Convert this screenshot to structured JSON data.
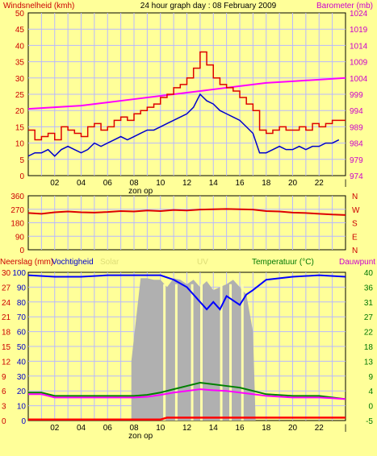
{
  "title": "24 hour graph day : 08 February 2009",
  "colors": {
    "background": "#ffff99",
    "plot_bg": "#ffff99",
    "grid": "#b8b8ff",
    "wind": "#dd0000",
    "gust": "#0000cc",
    "baro": "#ff00ff",
    "dir": "#dd0000",
    "hum": "#0000ff",
    "solar": "#b0b0b0",
    "uv": "#ffffaa",
    "temp": "#008000",
    "dew": "#ff00ff",
    "rain": "#ff0000",
    "text_red": "#cc0000",
    "text_mag": "#cc00cc",
    "text_green": "#007700",
    "text_dark": "#000000"
  },
  "chart_data": [
    {
      "type": "line",
      "name": "wind-baro",
      "left_label": "Windsnelheid (kmh)",
      "right_label": "Barometer (mb)",
      "left_ticks": [
        "50",
        "45",
        "40",
        "35",
        "30",
        "25",
        "20",
        "15",
        "10",
        "5",
        "0"
      ],
      "right_ticks": [
        "1024",
        "1019",
        "1014",
        "1009",
        "1004",
        "999",
        "994",
        "989",
        "984",
        "979",
        "974"
      ],
      "ylim_left": [
        0,
        50
      ],
      "ylim_right": [
        974,
        1024
      ],
      "x_ticks": [
        "02",
        "04",
        "06",
        "08",
        "10",
        "12",
        "14",
        "16",
        "18",
        "20",
        "22"
      ],
      "x_end_tick": "|",
      "xlim": [
        0,
        24
      ],
      "annotation": "zon op",
      "annotation_x": 8.5,
      "series": [
        {
          "key": "wind",
          "x": [
            0,
            0.5,
            1,
            1.5,
            2,
            2.5,
            3,
            3.5,
            4,
            4.5,
            5,
            5.5,
            6,
            6.5,
            7,
            7.5,
            8,
            8.5,
            9,
            9.5,
            10,
            10.5,
            11,
            11.5,
            12,
            12.5,
            13,
            13.5,
            14,
            14.5,
            15,
            15.5,
            16,
            16.5,
            17,
            17.5,
            18,
            18.5,
            19,
            19.5,
            20,
            20.5,
            21,
            21.5,
            22,
            22.5,
            23,
            23.5
          ],
          "y": [
            14,
            11,
            12,
            13,
            11,
            15,
            14,
            13,
            12,
            15,
            16,
            14,
            15,
            17,
            18,
            17,
            19,
            20,
            21,
            22,
            24,
            25,
            27,
            28,
            30,
            33,
            38,
            34,
            30,
            28,
            27,
            26,
            24,
            22,
            20,
            14,
            13,
            14,
            15,
            14,
            14,
            15,
            14,
            16,
            15,
            16,
            17,
            17
          ]
        },
        {
          "key": "gust",
          "x": [
            0,
            0.5,
            1,
            1.5,
            2,
            2.5,
            3,
            3.5,
            4,
            4.5,
            5,
            5.5,
            6,
            6.5,
            7,
            7.5,
            8,
            8.5,
            9,
            9.5,
            10,
            10.5,
            11,
            11.5,
            12,
            12.5,
            13,
            13.5,
            14,
            14.5,
            15,
            15.5,
            16,
            16.5,
            17,
            17.5,
            18,
            18.5,
            19,
            19.5,
            20,
            20.5,
            21,
            21.5,
            22,
            22.5,
            23,
            23.5
          ],
          "y": [
            6,
            7,
            7,
            8,
            6,
            8,
            9,
            8,
            7,
            8,
            10,
            9,
            10,
            11,
            12,
            11,
            12,
            13,
            14,
            14,
            15,
            16,
            17,
            18,
            19,
            21,
            25,
            23,
            22,
            20,
            19,
            18,
            17,
            15,
            13,
            7,
            7,
            8,
            9,
            8,
            8,
            9,
            8,
            9,
            9,
            10,
            10,
            11
          ]
        },
        {
          "key": "baro",
          "x": [
            0,
            2,
            4,
            6,
            8,
            10,
            12,
            14,
            16,
            18,
            20,
            22,
            24
          ],
          "y": [
            994.5,
            995,
            995.5,
            996.5,
            997.5,
            998.5,
            999.5,
            1000.5,
            1001.5,
            1002.5,
            1003,
            1003.5,
            1004
          ]
        }
      ]
    },
    {
      "type": "line",
      "name": "wind-direction",
      "left_ticks": [
        "360",
        "270",
        "180",
        "90",
        "0"
      ],
      "right_ticks": [
        "N",
        "W",
        "S",
        "E",
        "N"
      ],
      "ylim": [
        0,
        360
      ],
      "x": [
        0,
        1,
        2,
        3,
        4,
        5,
        6,
        7,
        8,
        9,
        10,
        11,
        12,
        13,
        14,
        15,
        16,
        17,
        18,
        19,
        20,
        21,
        22,
        23,
        24
      ],
      "series": [
        {
          "key": "dir",
          "y": [
            245,
            240,
            250,
            255,
            250,
            248,
            252,
            258,
            255,
            262,
            258,
            265,
            262,
            268,
            270,
            272,
            270,
            268,
            258,
            255,
            248,
            245,
            240,
            235,
            232
          ]
        }
      ]
    },
    {
      "type": "area",
      "name": "rain-humidity-temp",
      "left_labels": [
        "Neerslag (mm)",
        "Vochtigheid",
        "Solar",
        "UV"
      ],
      "right_labels": [
        "Temperatuur (°C)",
        "Dauwpunt"
      ],
      "left_ticks_rain": [
        "30",
        "27",
        "24",
        "21",
        "18",
        "15",
        "12",
        "9",
        "6",
        "3",
        "0"
      ],
      "left_ticks_hum": [
        "100",
        "90",
        "80",
        "70",
        "60",
        "50",
        "40",
        "30",
        "20",
        "10",
        "0"
      ],
      "right_ticks": [
        "40",
        "36",
        "31",
        "27",
        "22",
        "18",
        "13",
        "9",
        "4",
        "0",
        "-5"
      ],
      "ylim_rain": [
        0,
        30
      ],
      "ylim_hum": [
        0,
        100
      ],
      "ylim_temp": [
        -5,
        40
      ],
      "x_ticks": [
        "02",
        "04",
        "06",
        "08",
        "10",
        "12",
        "14",
        "16",
        "18",
        "20",
        "22"
      ],
      "x_end_tick": "|",
      "annotation": "zon op",
      "annotation_x": 8.5,
      "series": [
        {
          "key": "hum",
          "x": [
            0,
            2,
            4,
            6,
            8,
            10,
            11,
            12,
            13,
            13.5,
            14,
            14.5,
            15,
            16,
            16.5,
            17,
            18,
            20,
            22,
            24
          ],
          "y": [
            98,
            97,
            97,
            98,
            98,
            98,
            95,
            90,
            80,
            75,
            80,
            75,
            84,
            78,
            85,
            88,
            95,
            97,
            98,
            97
          ]
        },
        {
          "key": "solar",
          "x": [
            7.8,
            8.5,
            9,
            9.5,
            10,
            10.5,
            11,
            11.5,
            12,
            12.5,
            13,
            13.5,
            14,
            14.5,
            15,
            15.5,
            16,
            16.5,
            17,
            17.2
          ],
          "y": [
            40,
            96,
            96,
            95,
            95,
            90,
            96,
            95,
            92,
            95,
            90,
            94,
            88,
            90,
            92,
            95,
            90,
            85,
            60,
            0
          ]
        },
        {
          "key": "temp",
          "x": [
            0,
            1,
            2,
            4,
            6,
            8,
            9,
            10,
            11,
            12,
            13,
            14,
            15,
            16,
            17,
            18,
            20,
            22,
            23,
            24
          ],
          "y": [
            3.5,
            3.5,
            2.5,
            2.5,
            2.5,
            2.5,
            2.8,
            3.5,
            4.5,
            5.5,
            6.5,
            6,
            5.5,
            5,
            4,
            3,
            2.5,
            2.5,
            2,
            1.5
          ]
        },
        {
          "key": "dew",
          "x": [
            0,
            1,
            2,
            4,
            6,
            8,
            9,
            10,
            11,
            12,
            13,
            14,
            15,
            16,
            17,
            18,
            20,
            22,
            23,
            24
          ],
          "y": [
            3,
            3,
            2,
            2,
            2,
            2,
            2.2,
            2.8,
            3.5,
            4,
            4.5,
            4.2,
            4,
            3.5,
            3,
            2.5,
            2,
            2,
            1.8,
            1.5
          ]
        },
        {
          "key": "rain",
          "x": [
            0,
            10,
            10.5,
            24
          ],
          "y": [
            0.2,
            0.2,
            0.6,
            0.6
          ]
        }
      ]
    }
  ]
}
